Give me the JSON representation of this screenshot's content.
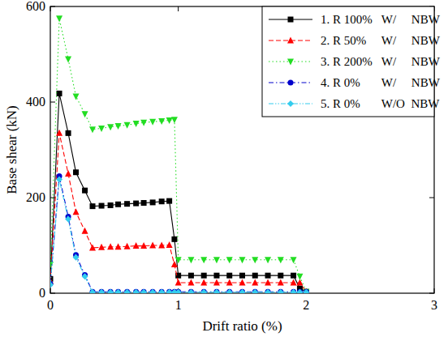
{
  "chart_data": {
    "type": "line",
    "x_label": "Drift ratio (%)",
    "y_label": "Base shear (kN)",
    "x": [
      0,
      0.07,
      0.14,
      0.2,
      0.27,
      0.33,
      0.4,
      0.47,
      0.53,
      0.6,
      0.67,
      0.73,
      0.8,
      0.87,
      0.93,
      0.97,
      1.0,
      1.1,
      1.2,
      1.3,
      1.4,
      1.5,
      1.6,
      1.7,
      1.8,
      1.9,
      1.95,
      2.0
    ],
    "xlim": [
      0,
      3
    ],
    "xticks": [
      0,
      1,
      2,
      3
    ],
    "ylim": [
      0,
      600
    ],
    "yticks": [
      0,
      200,
      400,
      600
    ],
    "grid": false,
    "legend": "upper right",
    "series": [
      {
        "name": "1. R 100%   W/     NBW",
        "color": "#000000",
        "marker": "square",
        "line_style": "solid",
        "values": [
          30,
          418,
          335,
          253,
          215,
          182,
          183,
          184,
          186,
          187,
          188,
          189,
          190,
          192,
          193,
          113,
          37,
          37,
          37,
          37,
          37,
          37,
          37,
          37,
          37,
          37,
          10,
          3
        ]
      },
      {
        "name": "2. R 50%     W/     NBW",
        "color": "#ff0000",
        "marker": "triangle-up",
        "line_style": "dash",
        "values": [
          25,
          335,
          250,
          170,
          130,
          95,
          96,
          97,
          97,
          98,
          99,
          99,
          100,
          100,
          101,
          60,
          22,
          22,
          22,
          22,
          22,
          22,
          22,
          22,
          22,
          22,
          22,
          3
        ]
      },
      {
        "name": "3. R 200%   W/     NBW",
        "color": "#22dd22",
        "marker": "triangle-down",
        "line_style": "dot",
        "values": [
          60,
          575,
          490,
          412,
          375,
          343,
          345,
          348,
          350,
          352,
          355,
          357,
          359,
          360,
          362,
          363,
          70,
          70,
          70,
          70,
          70,
          70,
          70,
          70,
          70,
          70,
          35,
          3
        ]
      },
      {
        "name": "4. R 0%       W/     NBW",
        "color": "#0000cc",
        "marker": "circle",
        "line_style": "dash-dot",
        "values": [
          20,
          245,
          160,
          80,
          38,
          3,
          3,
          3,
          3,
          3,
          3,
          3,
          3,
          3,
          3,
          3,
          3,
          3,
          3,
          3,
          3,
          3,
          3,
          3,
          3,
          3,
          3,
          3
        ]
      },
      {
        "name": "5. R 0%       W/O  NBW",
        "color": "#33ccee",
        "marker": "diamond",
        "line_style": "dash-dot-dot",
        "values": [
          18,
          238,
          155,
          75,
          35,
          2,
          2,
          2,
          2,
          2,
          2,
          2,
          2,
          2,
          2,
          2,
          2,
          2,
          2,
          2,
          2,
          2,
          2,
          2,
          2,
          2,
          2,
          2
        ]
      }
    ]
  }
}
